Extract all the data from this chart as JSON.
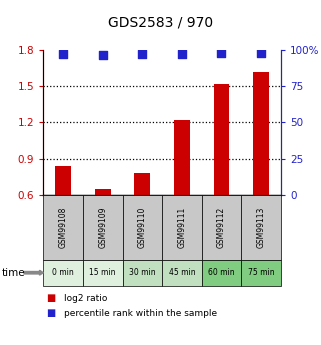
{
  "title": "GDS2583 / 970",
  "samples": [
    "GSM99108",
    "GSM99109",
    "GSM99110",
    "GSM99111",
    "GSM99112",
    "GSM99113"
  ],
  "time_labels": [
    "0 min",
    "15 min",
    "30 min",
    "45 min",
    "60 min",
    "75 min"
  ],
  "log2_ratio": [
    0.84,
    0.65,
    0.78,
    1.22,
    1.52,
    1.62
  ],
  "percentile_rank": [
    97.5,
    96.5,
    97.0,
    97.0,
    98.0,
    98.0
  ],
  "ylim_left": [
    0.6,
    1.8
  ],
  "ylim_right": [
    0,
    100
  ],
  "yticks_left": [
    0.6,
    0.9,
    1.2,
    1.5,
    1.8
  ],
  "yticks_right": [
    0,
    25,
    50,
    75,
    100
  ],
  "ytick_labels_right": [
    "0",
    "25",
    "50",
    "75",
    "100%"
  ],
  "bar_color": "#cc0000",
  "dot_color": "#2222cc",
  "bar_bottom": 0.6,
  "dot_size": 40,
  "gsm_bg_color": "#c8c8c8",
  "time_bg_colors": [
    "#dff0df",
    "#dff0df",
    "#c0e0c0",
    "#c0e0c0",
    "#80cc80",
    "#80cc80"
  ],
  "legend_red_label": "log2 ratio",
  "legend_blue_label": "percentile rank within the sample",
  "time_label": "time",
  "bar_width": 0.4
}
